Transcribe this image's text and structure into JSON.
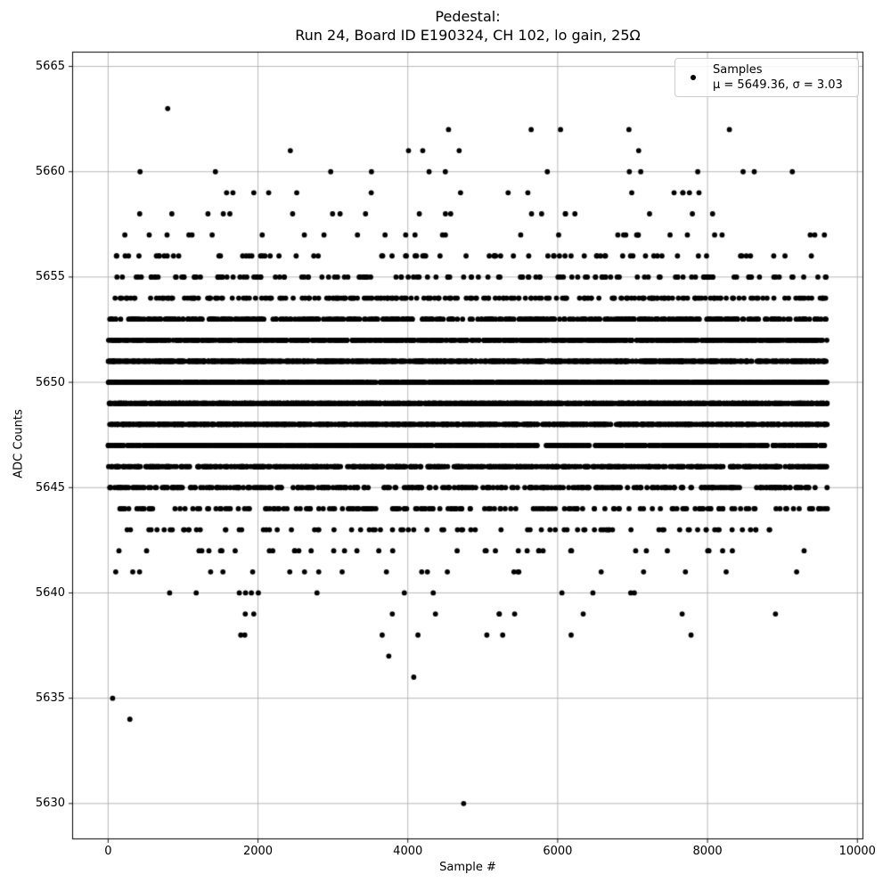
{
  "title": {
    "line1": "Pedestal:",
    "line2": "Run 24, Board ID E190324, CH 102, lo gain, 25Ω"
  },
  "axis_labels": {
    "x": "Sample #",
    "y": "ADC Counts"
  },
  "legend": {
    "entry_label": "Samples",
    "stats_label": "μ = 5649.36, σ = 3.03"
  },
  "colors": {
    "marker": "#000000",
    "grid": "#b0b0b0",
    "spine": "#000000",
    "background": "#ffffff",
    "legend_border": "#cccccc",
    "text": "#000000"
  },
  "chart_data": {
    "type": "scatter",
    "title": "Pedestal:\nRun 24, Board ID E190324, CH 102, lo gain, 25Ω",
    "xlabel": "Sample #",
    "ylabel": "ADC Counts",
    "series_name": "Samples",
    "stats": {
      "mu": 5649.36,
      "sigma": 3.03
    },
    "n_samples_approx": 9600,
    "x_range": [
      0,
      9599
    ],
    "xlim": [
      -480,
      10080
    ],
    "ylim": [
      5628.3,
      5665.7
    ],
    "x_ticks": [
      0,
      2000,
      4000,
      6000,
      8000,
      10000
    ],
    "y_ticks": [
      5630,
      5635,
      5640,
      5645,
      5650,
      5655,
      5660,
      5665
    ],
    "grid": true,
    "legend_position": "upper right",
    "marker": {
      "style": "dot",
      "color": "#000000",
      "radius_px": 2.9
    },
    "adc_level_counts": {
      "5638": 8,
      "5639": 10,
      "5640": 13,
      "5641": 22,
      "5642": 38,
      "5643": 85,
      "5644": 185,
      "5645": 340,
      "5646": 640,
      "5647": 880,
      "5648": 1120,
      "5649": 1280,
      "5650": 1250,
      "5651": 1080,
      "5652": 820,
      "5653": 470,
      "5654": 250,
      "5655": 135,
      "5656": 75,
      "5657": 30,
      "5658": 20,
      "5659": 15,
      "5660": 13
    },
    "outlier_points": [
      [
        4745,
        5630
      ],
      [
        290,
        5634
      ],
      [
        60,
        5635
      ],
      [
        4079,
        5636
      ],
      [
        3746,
        5637
      ],
      [
        2432,
        5661
      ],
      [
        4009,
        5661
      ],
      [
        4199,
        5661
      ],
      [
        4685,
        5661
      ],
      [
        7081,
        5661
      ],
      [
        4543,
        5662
      ],
      [
        5646,
        5662
      ],
      [
        6038,
        5662
      ],
      [
        6951,
        5662
      ],
      [
        8292,
        5662
      ],
      [
        795,
        5663
      ]
    ],
    "random_seed": 1337
  }
}
